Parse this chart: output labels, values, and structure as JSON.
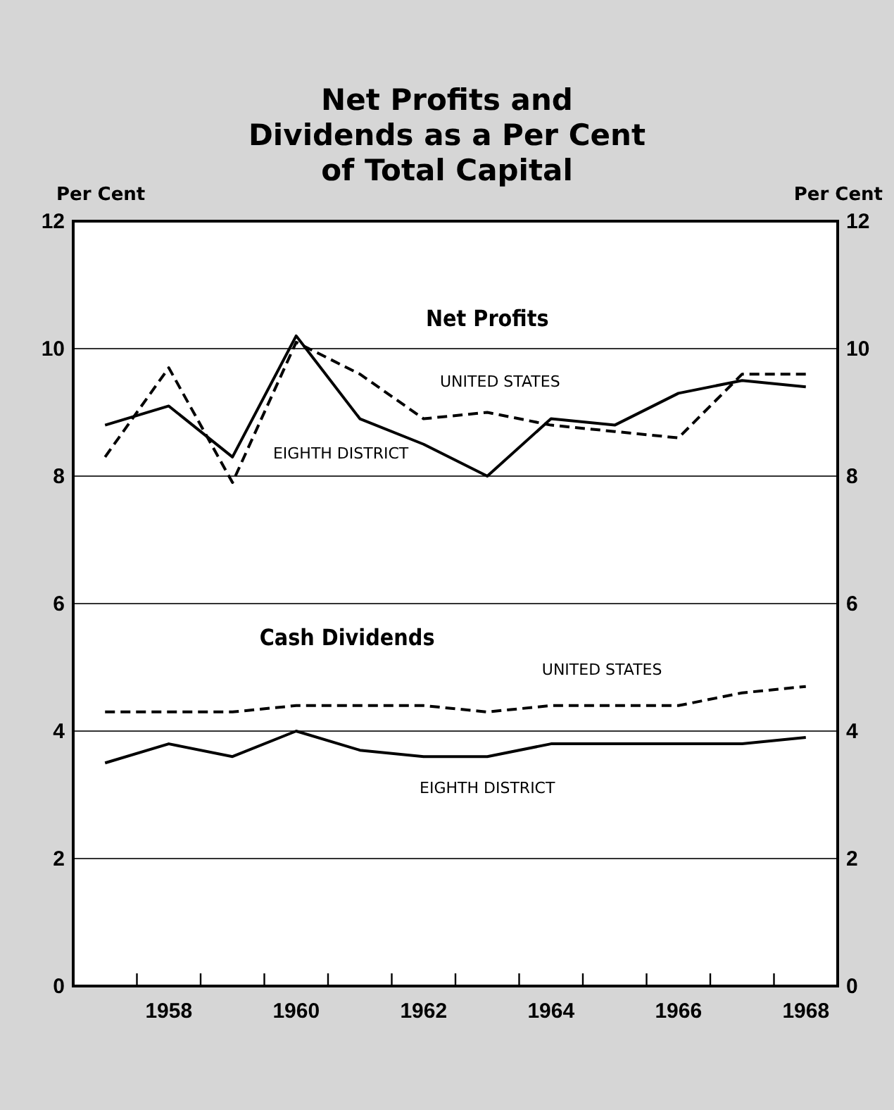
{
  "chart_data": {
    "type": "line",
    "title": "Net Profits and Dividends as a Per Cent of Total Capital",
    "ylabel": "Per Cent",
    "y2label": "Per Cent",
    "categories": [
      null,
      "1958",
      null,
      "1960",
      null,
      "1962",
      null,
      "1964",
      null,
      "1966",
      null,
      "1968"
    ],
    "series": [
      {
        "name": "UNITED STATES",
        "color": "#000000",
        "line_style": "dashed",
        "values": [
          8.3,
          9.7,
          7.9,
          10.1,
          9.6,
          8.9,
          9.0,
          8.8,
          8.7,
          8.6,
          9.6,
          9.6
        ]
      },
      {
        "name": "EIGHTH DISTRICT",
        "color": "#000000",
        "line_style": "solid",
        "values": [
          8.8,
          9.1,
          8.3,
          10.2,
          8.9,
          8.5,
          8.0,
          8.9,
          8.8,
          9.3,
          9.5,
          9.4
        ]
      },
      {
        "name": "UNITED STATES",
        "color": "#000000",
        "line_style": "dashed",
        "values": [
          4.3,
          4.3,
          4.3,
          4.4,
          4.4,
          4.4,
          4.3,
          4.4,
          4.4,
          4.4,
          4.6,
          4.7
        ]
      },
      {
        "name": "EIGHTH DISTRICT",
        "color": "#000000",
        "line_style": "solid",
        "values": [
          3.5,
          3.8,
          3.6,
          4.0,
          3.7,
          3.6,
          3.6,
          3.8,
          3.8,
          3.8,
          3.8,
          3.9
        ]
      }
    ],
    "annotations": [
      "Net Profits",
      "Cash Dividends"
    ],
    "ylim": [
      0,
      12
    ],
    "yticks": [
      0,
      2,
      4,
      6,
      8,
      10,
      12
    ],
    "y2lim": [
      0,
      12
    ],
    "y2ticks": [
      0,
      2,
      4,
      6,
      8,
      10,
      12
    ],
    "grid": "y",
    "marker": "none"
  }
}
